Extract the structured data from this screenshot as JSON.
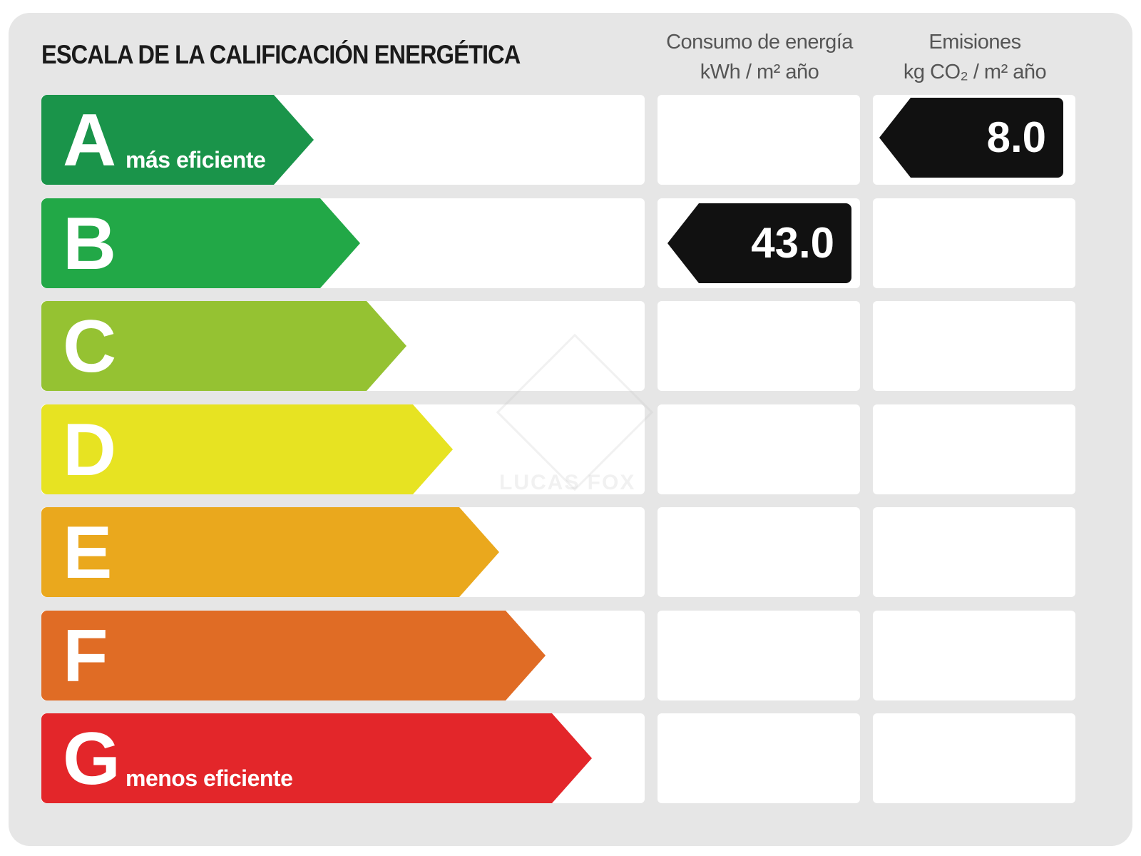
{
  "title": "ESCALA DE LA CALIFICACIÓN ENERGÉTICA",
  "columns": {
    "consumo": {
      "line1": "Consumo de energía",
      "line2": "kWh / m² año"
    },
    "emisiones": {
      "line1": "Emisiones",
      "line2": "kg CO₂ / m² año"
    }
  },
  "ratings": [
    {
      "letter": "A",
      "note": "más eficiente",
      "color": "#1a944a"
    },
    {
      "letter": "B",
      "note": "",
      "color": "#22a847"
    },
    {
      "letter": "C",
      "note": "",
      "color": "#95c232"
    },
    {
      "letter": "D",
      "note": "",
      "color": "#e7e322"
    },
    {
      "letter": "E",
      "note": "",
      "color": "#eaa81d"
    },
    {
      "letter": "F",
      "note": "",
      "color": "#e06c25"
    },
    {
      "letter": "G",
      "note": "menos eficiente",
      "color": "#e3262a"
    }
  ],
  "consumption": {
    "value": "43.0",
    "rating": "B"
  },
  "emissions": {
    "value": "8.0",
    "rating": "A"
  }
}
